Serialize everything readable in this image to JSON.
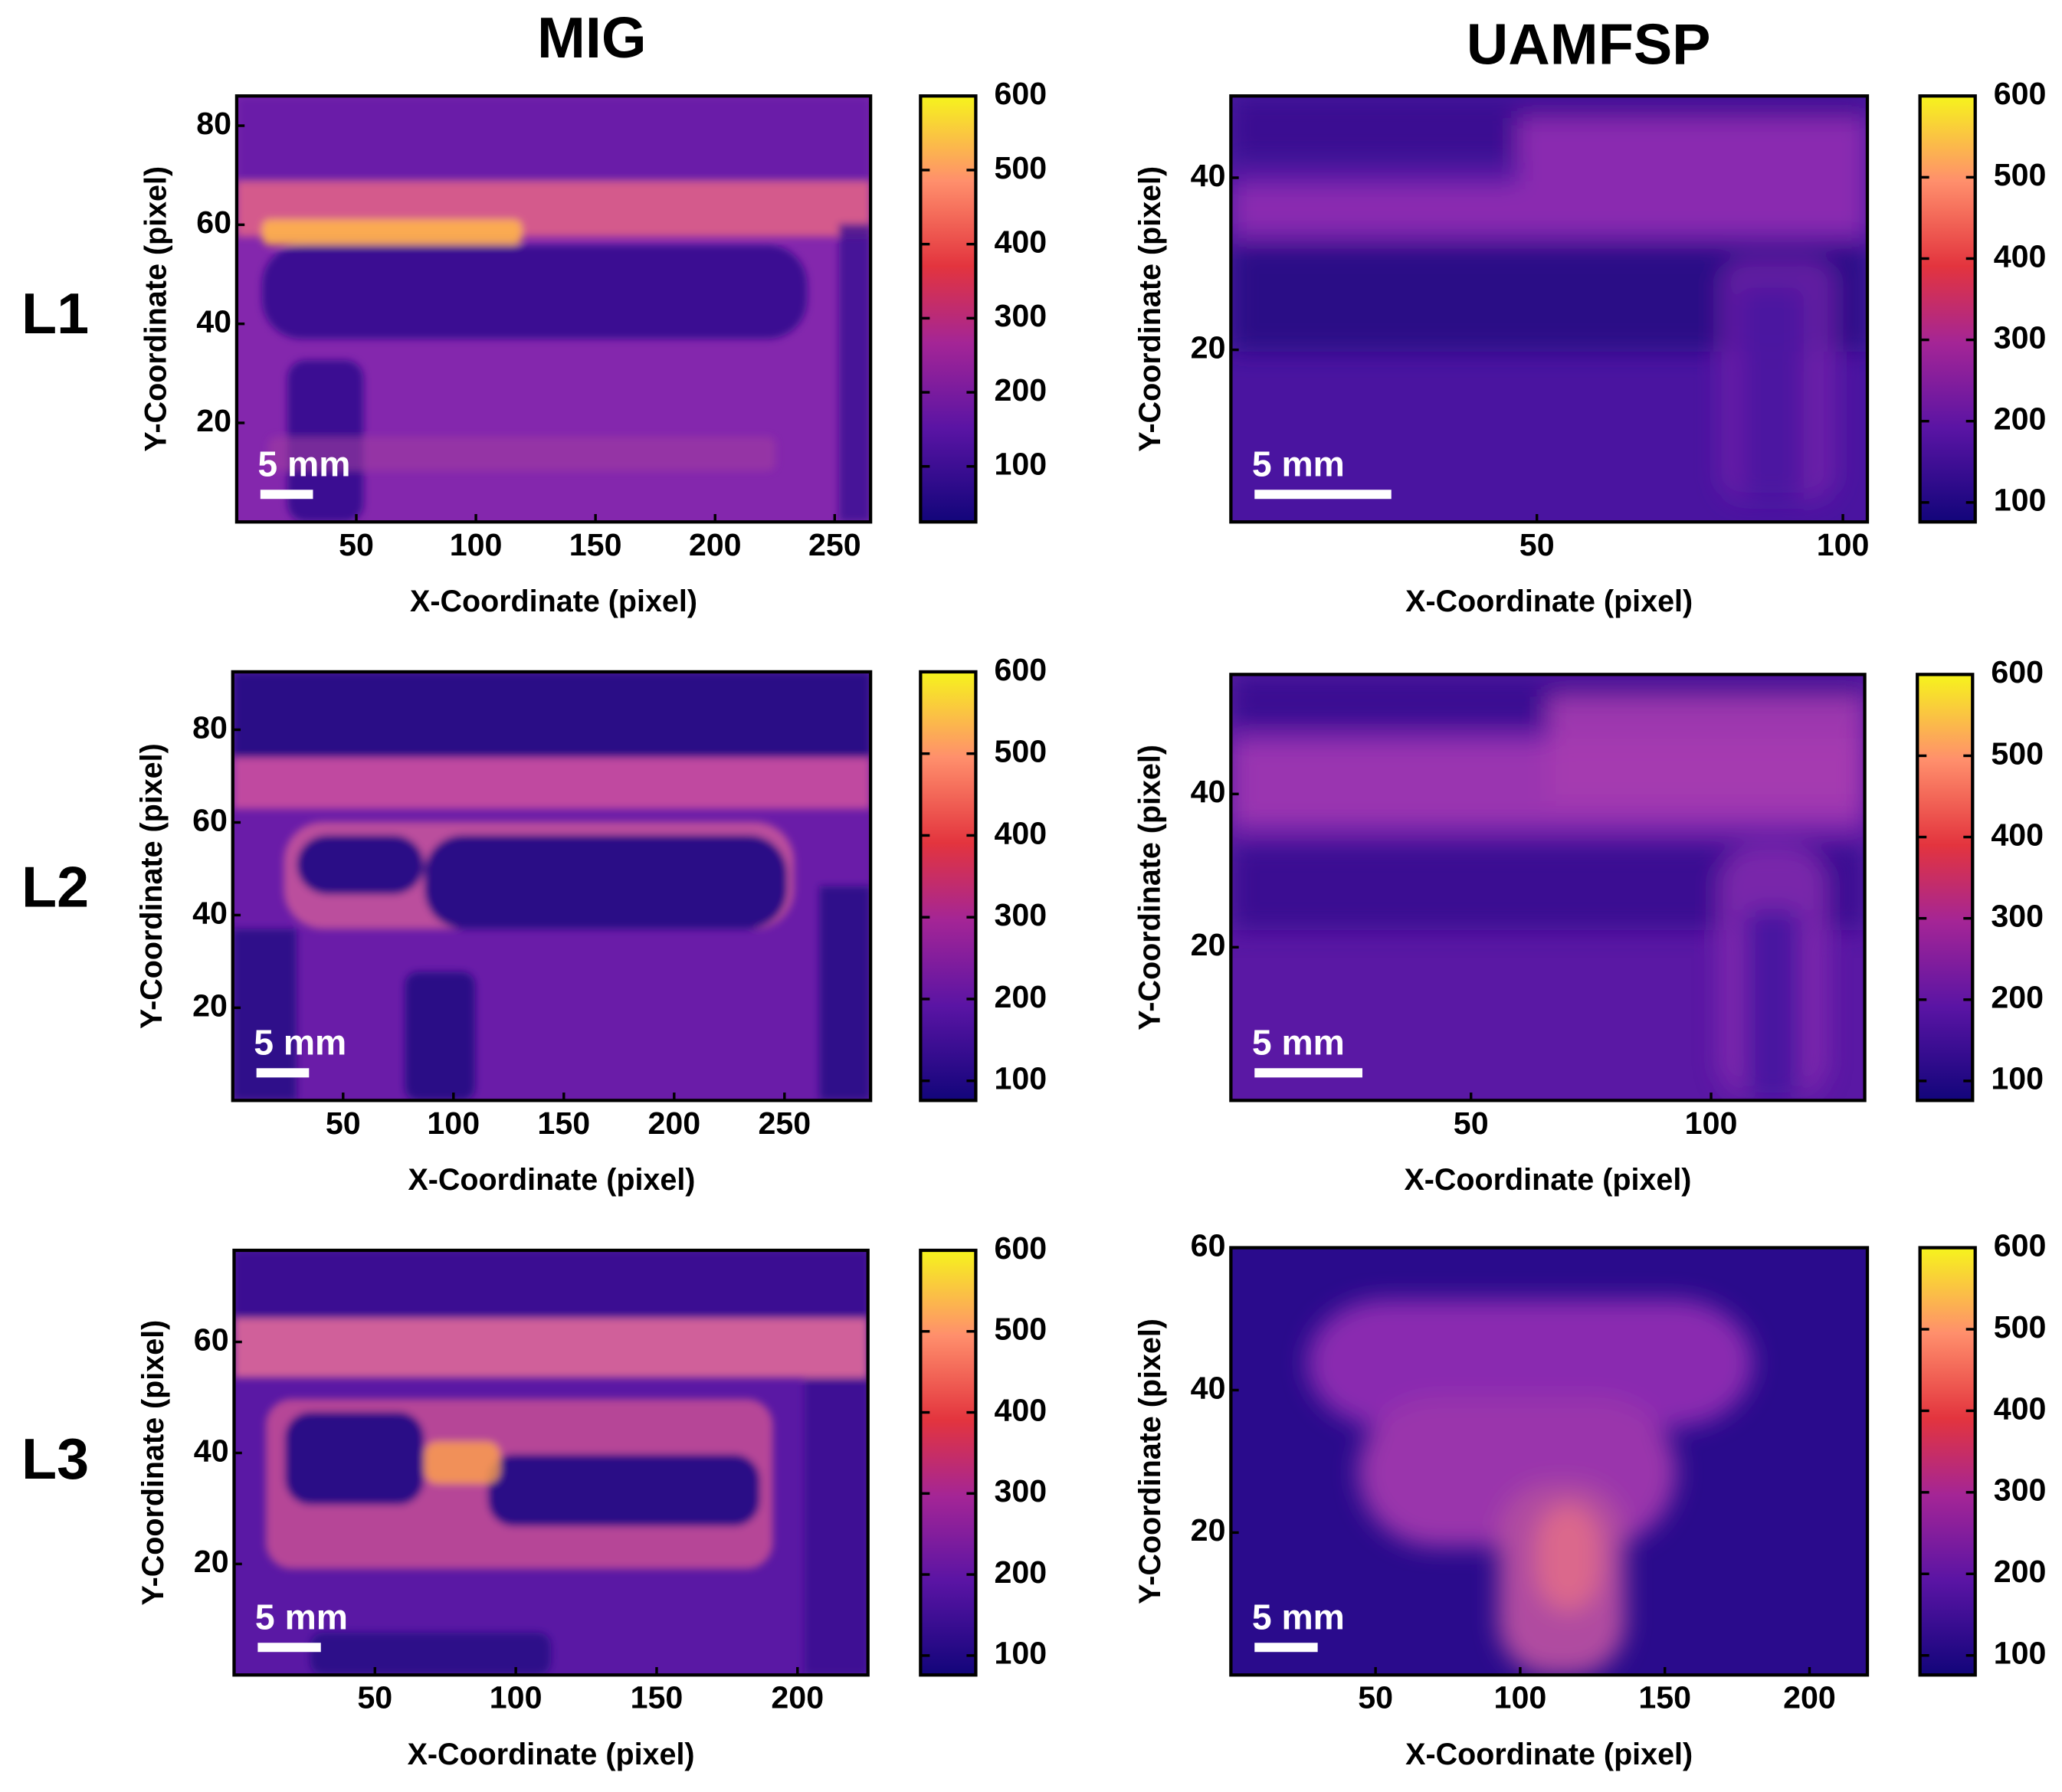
{
  "columns": [
    "MIG",
    "UAMFSP"
  ],
  "rows": [
    "L1",
    "L2",
    "L3"
  ],
  "chart_data": [
    {
      "type": "heatmap",
      "xlabel": "X-Coordinate (pixel)",
      "ylabel": "Y-Coordinate (pixel)",
      "xlim": [
        0,
        265
      ],
      "ylim": [
        0,
        86
      ],
      "xticks": [
        50,
        100,
        150,
        200,
        250
      ],
      "yticks": [
        20,
        40,
        60,
        80
      ],
      "colorbar": {
        "lim": [
          25,
          600
        ],
        "ticks": [
          100,
          200,
          300,
          400,
          500,
          600
        ]
      },
      "scale_bar": "5 mm"
    },
    {
      "type": "heatmap",
      "xlabel": "X-Coordinate (pixel)",
      "ylabel": "Y-Coordinate (pixel)",
      "xlim": [
        0,
        104
      ],
      "ylim": [
        0,
        49.5
      ],
      "xticks": [
        50,
        100
      ],
      "yticks": [
        20,
        40
      ],
      "colorbar": {
        "lim": [
          76,
          600
        ],
        "ticks": [
          100,
          200,
          300,
          400,
          500,
          600
        ]
      },
      "scale_bar": "5 mm"
    },
    {
      "type": "heatmap",
      "xlabel": "X-Coordinate (pixel)",
      "ylabel": "Y-Coordinate (pixel)",
      "xlim": [
        0,
        289
      ],
      "ylim": [
        0,
        92.5
      ],
      "xticks": [
        50,
        100,
        150,
        200,
        250
      ],
      "yticks": [
        20,
        40,
        60,
        80
      ],
      "colorbar": {
        "lim": [
          76,
          600
        ],
        "ticks": [
          100,
          200,
          300,
          400,
          500,
          600
        ]
      },
      "scale_bar": "5 mm"
    },
    {
      "type": "heatmap",
      "xlabel": "X-Coordinate (pixel)",
      "ylabel": "Y-Coordinate (pixel)",
      "xlim": [
        0,
        132
      ],
      "ylim": [
        0,
        55.6
      ],
      "xticks": [
        50,
        100
      ],
      "yticks": [
        20,
        40
      ],
      "colorbar": {
        "lim": [
          76,
          600
        ],
        "ticks": [
          100,
          200,
          300,
          400,
          500,
          600
        ]
      },
      "scale_bar": "5 mm"
    },
    {
      "type": "heatmap",
      "xlabel": "X-Coordinate (pixel)",
      "ylabel": "Y-Coordinate (pixel)",
      "xlim": [
        0,
        225
      ],
      "ylim": [
        0,
        76.5
      ],
      "xticks": [
        50,
        100,
        150,
        200
      ],
      "yticks": [
        20,
        40,
        60
      ],
      "colorbar": {
        "lim": [
          76,
          600
        ],
        "ticks": [
          100,
          200,
          300,
          400,
          500,
          600
        ]
      },
      "scale_bar": "5 mm"
    },
    {
      "type": "heatmap",
      "xlabel": "X-Coordinate (pixel)",
      "ylabel": "Y-Coordinate (pixel)",
      "xlim": [
        0,
        220
      ],
      "ylim": [
        0,
        60
      ],
      "xticks": [
        50,
        100,
        150,
        200
      ],
      "yticks": [
        20,
        40,
        60
      ],
      "colorbar": {
        "lim": [
          76,
          600
        ],
        "ticks": [
          100,
          200,
          300,
          400,
          500,
          600
        ]
      },
      "scale_bar": "5 mm"
    }
  ]
}
